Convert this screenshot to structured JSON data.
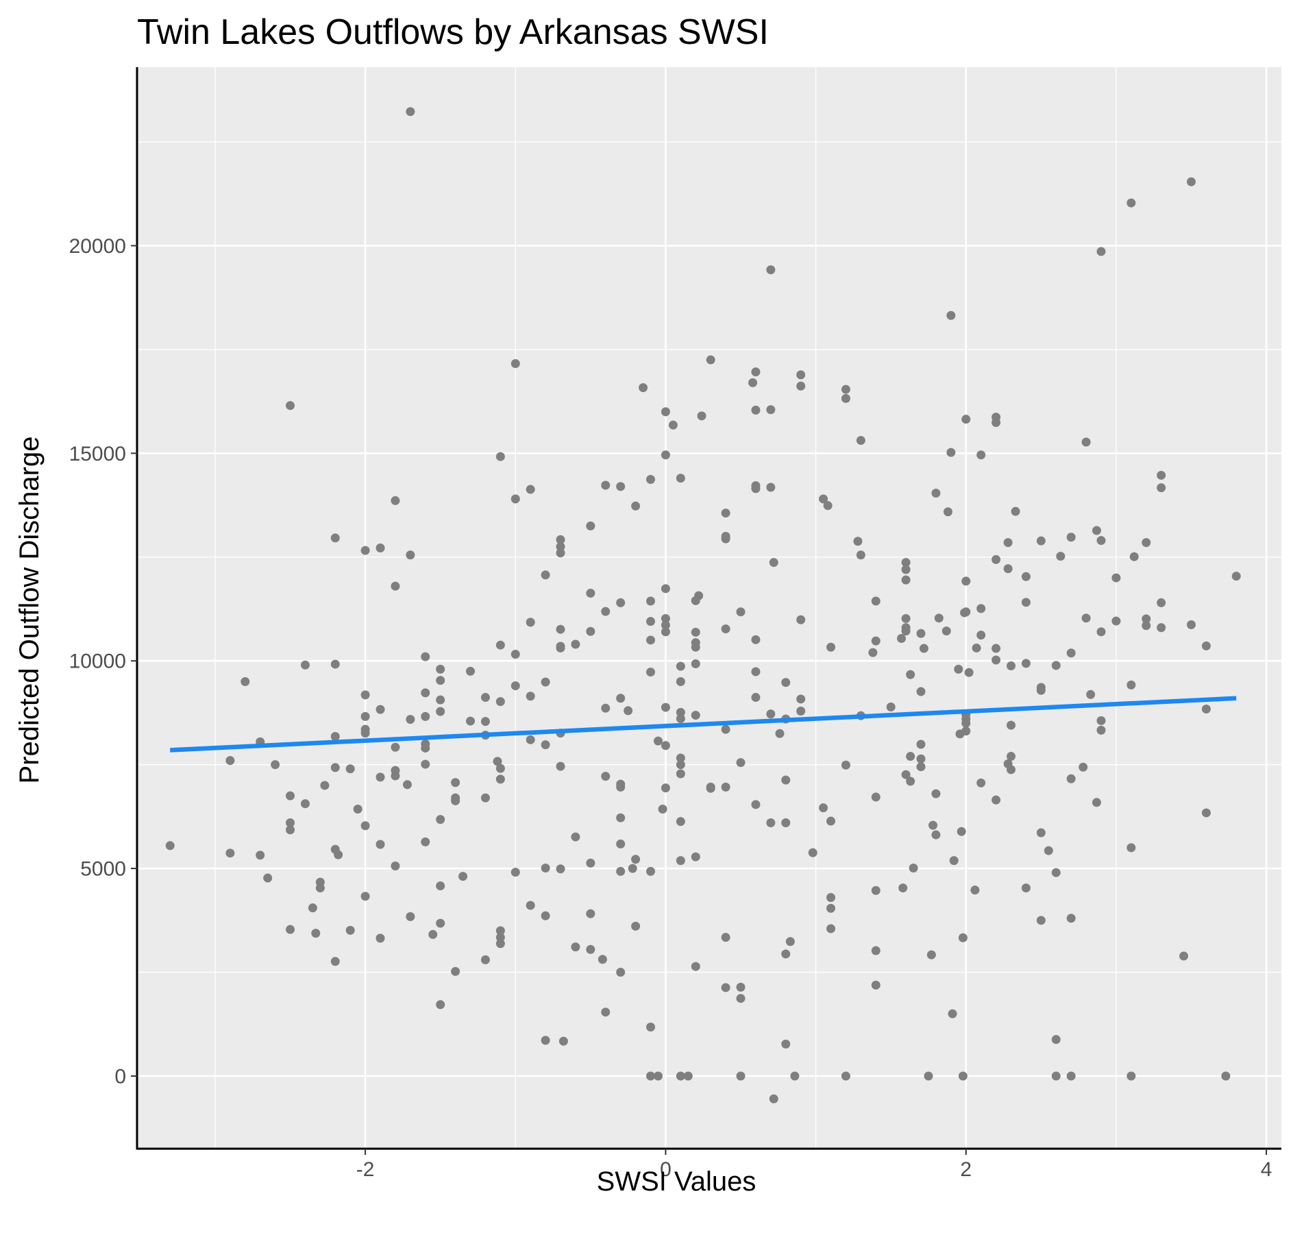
{
  "chart_data": {
    "type": "scatter",
    "title": "Twin Lakes Outflows by Arkansas SWSI",
    "xlabel": "SWSI Values",
    "ylabel": "Predicted Outflow Discharge",
    "xlim": [
      -3.52,
      4.1
    ],
    "ylim": [
      -1750,
      24300
    ],
    "x_ticks": [
      -2,
      0,
      2,
      4
    ],
    "x_tick_labels": [
      "-2",
      "0",
      "2",
      "4"
    ],
    "y_ticks": [
      0,
      5000,
      10000,
      15000,
      20000
    ],
    "y_tick_labels": [
      "0",
      "5000",
      "10000",
      "15000",
      "20000"
    ],
    "x_minor_grid": [
      -3,
      -1,
      1,
      3
    ],
    "y_minor_grid": [
      2500,
      7500,
      12500,
      17500,
      22500
    ],
    "grid": true,
    "legend": "none",
    "colors": {
      "panel": "#ebebeb",
      "grid": "#ffffff",
      "points": "#7f7f7f",
      "trend": "#1e88f0",
      "axis": "#000000"
    },
    "trend_line": {
      "x": [
        -3.3,
        3.8
      ],
      "y": [
        7850,
        9100
      ]
    },
    "points": [
      [
        -3.3,
        5550
      ],
      [
        -2.9,
        5370
      ],
      [
        -2.9,
        7600
      ],
      [
        -2.8,
        9500
      ],
      [
        -2.7,
        8050
      ],
      [
        -2.7,
        5320
      ],
      [
        -2.65,
        4770
      ],
      [
        -2.6,
        7500
      ],
      [
        -2.5,
        16150
      ],
      [
        -2.5,
        6750
      ],
      [
        -2.5,
        6100
      ],
      [
        -2.5,
        5930
      ],
      [
        -2.5,
        3530
      ],
      [
        -2.4,
        9900
      ],
      [
        -2.4,
        6560
      ],
      [
        -2.35,
        4050
      ],
      [
        -2.33,
        3440
      ],
      [
        -2.3,
        4530
      ],
      [
        -2.3,
        4670
      ],
      [
        -2.27,
        7000
      ],
      [
        -2.2,
        12960
      ],
      [
        -2.2,
        9920
      ],
      [
        -2.2,
        8180
      ],
      [
        -2.2,
        7430
      ],
      [
        -2.2,
        5460
      ],
      [
        -2.18,
        5330
      ],
      [
        -2.2,
        2760
      ],
      [
        -2.1,
        7400
      ],
      [
        -2.1,
        3510
      ],
      [
        -2.05,
        6430
      ],
      [
        -2.0,
        12660
      ],
      [
        -2.0,
        9180
      ],
      [
        -2.0,
        8660
      ],
      [
        -2.0,
        8350
      ],
      [
        -2.0,
        8260
      ],
      [
        -2.0,
        6030
      ],
      [
        -2.0,
        4330
      ],
      [
        -1.9,
        12720
      ],
      [
        -1.9,
        8830
      ],
      [
        -1.9,
        7200
      ],
      [
        -1.9,
        5580
      ],
      [
        -1.9,
        3320
      ],
      [
        -1.8,
        13860
      ],
      [
        -1.8,
        11800
      ],
      [
        -1.8,
        7920
      ],
      [
        -1.8,
        7360
      ],
      [
        -1.8,
        7230
      ],
      [
        -1.8,
        5060
      ],
      [
        -1.7,
        23230
      ],
      [
        -1.7,
        12550
      ],
      [
        -1.7,
        8590
      ],
      [
        -1.72,
        7020
      ],
      [
        -1.7,
        3840
      ],
      [
        -1.6,
        10100
      ],
      [
        -1.6,
        9230
      ],
      [
        -1.6,
        8660
      ],
      [
        -1.6,
        8000
      ],
      [
        -1.6,
        7900
      ],
      [
        -1.6,
        7510
      ],
      [
        -1.6,
        5640
      ],
      [
        -1.55,
        3410
      ],
      [
        -1.5,
        9800
      ],
      [
        -1.5,
        9530
      ],
      [
        -1.5,
        9060
      ],
      [
        -1.5,
        8780
      ],
      [
        -1.5,
        6180
      ],
      [
        -1.5,
        4580
      ],
      [
        -1.5,
        3680
      ],
      [
        -1.5,
        1720
      ],
      [
        -1.4,
        7070
      ],
      [
        -1.4,
        6700
      ],
      [
        -1.4,
        6630
      ],
      [
        -1.4,
        2520
      ],
      [
        -1.35,
        4810
      ],
      [
        -1.3,
        9750
      ],
      [
        -1.3,
        8550
      ],
      [
        -1.2,
        9120
      ],
      [
        -1.2,
        8540
      ],
      [
        -1.2,
        8210
      ],
      [
        -1.2,
        6700
      ],
      [
        -1.2,
        2800
      ],
      [
        -1.1,
        14920
      ],
      [
        -1.1,
        10380
      ],
      [
        -1.1,
        9020
      ],
      [
        -1.12,
        7580
      ],
      [
        -1.1,
        7410
      ],
      [
        -1.1,
        7150
      ],
      [
        -1.1,
        3500
      ],
      [
        -1.1,
        3340
      ],
      [
        -1.1,
        3190
      ],
      [
        -1.0,
        17160
      ],
      [
        -1.0,
        13900
      ],
      [
        -1.0,
        10160
      ],
      [
        -1.0,
        9400
      ],
      [
        -1.0,
        4910
      ],
      [
        -0.9,
        14130
      ],
      [
        -0.9,
        10930
      ],
      [
        -0.9,
        9150
      ],
      [
        -0.9,
        8100
      ],
      [
        -0.9,
        4110
      ],
      [
        -0.8,
        12070
      ],
      [
        -0.8,
        9490
      ],
      [
        -0.8,
        7980
      ],
      [
        -0.8,
        5010
      ],
      [
        -0.8,
        3860
      ],
      [
        -0.8,
        860
      ],
      [
        -0.7,
        12920
      ],
      [
        -0.7,
        12750
      ],
      [
        -0.7,
        12600
      ],
      [
        -0.7,
        10760
      ],
      [
        -0.7,
        10350
      ],
      [
        -0.7,
        10310
      ],
      [
        -0.7,
        8260
      ],
      [
        -0.7,
        7460
      ],
      [
        -0.7,
        4990
      ],
      [
        -0.68,
        840
      ],
      [
        -0.6,
        10400
      ],
      [
        -0.6,
        5760
      ],
      [
        -0.6,
        3110
      ],
      [
        -0.5,
        13250
      ],
      [
        -0.5,
        11630
      ],
      [
        -0.5,
        10710
      ],
      [
        -0.5,
        5130
      ],
      [
        -0.5,
        3910
      ],
      [
        -0.5,
        3050
      ],
      [
        -0.4,
        14230
      ],
      [
        -0.4,
        11190
      ],
      [
        -0.4,
        8860
      ],
      [
        -0.4,
        7220
      ],
      [
        -0.42,
        2810
      ],
      [
        -0.4,
        1540
      ],
      [
        -0.3,
        14200
      ],
      [
        -0.3,
        11400
      ],
      [
        -0.3,
        9100
      ],
      [
        -0.3,
        7030
      ],
      [
        -0.3,
        6960
      ],
      [
        -0.3,
        6220
      ],
      [
        -0.3,
        5590
      ],
      [
        -0.3,
        4930
      ],
      [
        -0.3,
        2500
      ],
      [
        -0.25,
        8800
      ],
      [
        -0.2,
        13730
      ],
      [
        -0.2,
        5220
      ],
      [
        -0.22,
        5000
      ],
      [
        -0.2,
        3610
      ],
      [
        -0.15,
        16580
      ],
      [
        -0.1,
        14370
      ],
      [
        -0.1,
        11440
      ],
      [
        -0.1,
        10950
      ],
      [
        -0.1,
        10500
      ],
      [
        -0.1,
        9730
      ],
      [
        -0.1,
        4930
      ],
      [
        -0.1,
        1180
      ],
      [
        -0.05,
        0
      ],
      [
        -0.1,
        0
      ],
      [
        -0.05,
        8070
      ],
      [
        0.0,
        16000
      ],
      [
        0.0,
        14960
      ],
      [
        0.0,
        11740
      ],
      [
        0.0,
        11020
      ],
      [
        0.0,
        10860
      ],
      [
        0.0,
        10700
      ],
      [
        0.0,
        8880
      ],
      [
        0.0,
        7960
      ],
      [
        -0.02,
        6430
      ],
      [
        0.0,
        6940
      ],
      [
        0.05,
        15680
      ],
      [
        0.1,
        14400
      ],
      [
        0.1,
        9870
      ],
      [
        0.1,
        9500
      ],
      [
        0.1,
        8760
      ],
      [
        0.1,
        8610
      ],
      [
        0.1,
        7660
      ],
      [
        0.1,
        7500
      ],
      [
        0.1,
        7280
      ],
      [
        0.1,
        6130
      ],
      [
        0.1,
        5190
      ],
      [
        0.1,
        0
      ],
      [
        0.15,
        0
      ],
      [
        0.2,
        11450
      ],
      [
        0.2,
        10690
      ],
      [
        0.2,
        10440
      ],
      [
        0.2,
        10330
      ],
      [
        0.2,
        9930
      ],
      [
        0.2,
        8690
      ],
      [
        0.2,
        5280
      ],
      [
        0.2,
        2640
      ],
      [
        0.24,
        15900
      ],
      [
        0.22,
        11570
      ],
      [
        0.3,
        17250
      ],
      [
        0.3,
        6930
      ],
      [
        0.3,
        6960
      ],
      [
        0.4,
        13560
      ],
      [
        0.4,
        13000
      ],
      [
        0.4,
        12940
      ],
      [
        0.4,
        10770
      ],
      [
        0.4,
        8350
      ],
      [
        0.4,
        6960
      ],
      [
        0.4,
        3340
      ],
      [
        0.4,
        2130
      ],
      [
        0.5,
        11180
      ],
      [
        0.5,
        7550
      ],
      [
        0.5,
        2140
      ],
      [
        0.5,
        1870
      ],
      [
        0.5,
        0
      ],
      [
        0.58,
        16700
      ],
      [
        0.6,
        16960
      ],
      [
        0.6,
        16040
      ],
      [
        0.6,
        14220
      ],
      [
        0.6,
        14150
      ],
      [
        0.6,
        10510
      ],
      [
        0.6,
        9740
      ],
      [
        0.6,
        9120
      ],
      [
        0.6,
        6540
      ],
      [
        0.7,
        19420
      ],
      [
        0.7,
        16050
      ],
      [
        0.7,
        14180
      ],
      [
        0.7,
        8720
      ],
      [
        0.7,
        6100
      ],
      [
        0.72,
        12370
      ],
      [
        0.72,
        -550
      ],
      [
        0.76,
        8250
      ],
      [
        0.8,
        9480
      ],
      [
        0.8,
        8600
      ],
      [
        0.8,
        7130
      ],
      [
        0.8,
        6100
      ],
      [
        0.8,
        2940
      ],
      [
        0.8,
        770
      ],
      [
        0.83,
        3240
      ],
      [
        0.86,
        0
      ],
      [
        0.9,
        16890
      ],
      [
        0.9,
        16620
      ],
      [
        0.9,
        10990
      ],
      [
        0.9,
        9080
      ],
      [
        0.9,
        8790
      ],
      [
        0.98,
        5380
      ],
      [
        1.05,
        13900
      ],
      [
        1.08,
        13740
      ],
      [
        1.1,
        10330
      ],
      [
        1.05,
        6460
      ],
      [
        1.1,
        6140
      ],
      [
        1.1,
        4300
      ],
      [
        1.1,
        4040
      ],
      [
        1.1,
        3550
      ],
      [
        1.2,
        16540
      ],
      [
        1.2,
        16320
      ],
      [
        1.2,
        7490
      ],
      [
        1.2,
        0
      ],
      [
        1.3,
        15310
      ],
      [
        1.28,
        12880
      ],
      [
        1.3,
        12550
      ],
      [
        1.3,
        8680
      ],
      [
        1.38,
        10200
      ],
      [
        1.4,
        11440
      ],
      [
        1.4,
        10480
      ],
      [
        1.4,
        6720
      ],
      [
        1.4,
        4470
      ],
      [
        1.4,
        3020
      ],
      [
        1.4,
        2190
      ],
      [
        1.5,
        8890
      ],
      [
        1.57,
        10540
      ],
      [
        1.58,
        4530
      ],
      [
        1.6,
        12370
      ],
      [
        1.6,
        12200
      ],
      [
        1.6,
        11950
      ],
      [
        1.6,
        11020
      ],
      [
        1.6,
        10800
      ],
      [
        1.6,
        10720
      ],
      [
        1.6,
        7260
      ],
      [
        1.63,
        9670
      ],
      [
        1.63,
        7700
      ],
      [
        1.63,
        7100
      ],
      [
        1.65,
        5010
      ],
      [
        1.7,
        10660
      ],
      [
        1.7,
        9260
      ],
      [
        1.7,
        7990
      ],
      [
        1.7,
        7640
      ],
      [
        1.7,
        7450
      ],
      [
        1.72,
        10300
      ],
      [
        1.75,
        0
      ],
      [
        1.78,
        6040
      ],
      [
        1.77,
        2920
      ],
      [
        1.8,
        14040
      ],
      [
        1.8,
        6800
      ],
      [
        1.8,
        5810
      ],
      [
        1.82,
        11030
      ],
      [
        1.87,
        10720
      ],
      [
        1.88,
        13590
      ],
      [
        1.9,
        18320
      ],
      [
        1.9,
        15020
      ],
      [
        1.92,
        5190
      ],
      [
        1.91,
        1500
      ],
      [
        1.95,
        9800
      ],
      [
        1.96,
        8240
      ],
      [
        1.97,
        5890
      ],
      [
        1.98,
        0
      ],
      [
        1.98,
        3330
      ],
      [
        2.0,
        15820
      ],
      [
        2.0,
        11920
      ],
      [
        2.0,
        11180
      ],
      [
        1.99,
        11160
      ],
      [
        2.0,
        8710
      ],
      [
        2.0,
        8600
      ],
      [
        2.0,
        8500
      ],
      [
        2.0,
        8310
      ],
      [
        2.02,
        9720
      ],
      [
        2.06,
        4480
      ],
      [
        2.07,
        10310
      ],
      [
        2.1,
        14960
      ],
      [
        2.1,
        11260
      ],
      [
        2.1,
        10620
      ],
      [
        2.1,
        7060
      ],
      [
        2.2,
        15870
      ],
      [
        2.2,
        15740
      ],
      [
        2.2,
        12440
      ],
      [
        2.2,
        10300
      ],
      [
        2.2,
        10020
      ],
      [
        2.2,
        6650
      ],
      [
        2.28,
        12850
      ],
      [
        2.28,
        12220
      ],
      [
        2.3,
        9880
      ],
      [
        2.3,
        8450
      ],
      [
        2.3,
        7700
      ],
      [
        2.28,
        7520
      ],
      [
        2.3,
        7380
      ],
      [
        2.33,
        13600
      ],
      [
        2.4,
        12030
      ],
      [
        2.4,
        11410
      ],
      [
        2.4,
        9940
      ],
      [
        2.4,
        4530
      ],
      [
        2.5,
        12890
      ],
      [
        2.5,
        9360
      ],
      [
        2.5,
        9290
      ],
      [
        2.5,
        5860
      ],
      [
        2.5,
        3750
      ],
      [
        2.55,
        5430
      ],
      [
        2.6,
        9890
      ],
      [
        2.6,
        4900
      ],
      [
        2.6,
        880
      ],
      [
        2.6,
        0
      ],
      [
        2.63,
        12520
      ],
      [
        2.7,
        12980
      ],
      [
        2.7,
        10190
      ],
      [
        2.7,
        7160
      ],
      [
        2.7,
        3800
      ],
      [
        2.7,
        0
      ],
      [
        2.78,
        7440
      ],
      [
        2.8,
        15270
      ],
      [
        2.8,
        11030
      ],
      [
        2.83,
        9190
      ],
      [
        2.87,
        13140
      ],
      [
        2.87,
        6590
      ],
      [
        2.9,
        19860
      ],
      [
        2.9,
        12900
      ],
      [
        2.9,
        10700
      ],
      [
        2.9,
        8560
      ],
      [
        2.9,
        8330
      ],
      [
        3.0,
        12000
      ],
      [
        3.0,
        10960
      ],
      [
        3.1,
        21030
      ],
      [
        3.12,
        12510
      ],
      [
        3.1,
        9420
      ],
      [
        3.1,
        5500
      ],
      [
        3.1,
        0
      ],
      [
        3.2,
        12850
      ],
      [
        3.2,
        11010
      ],
      [
        3.2,
        10850
      ],
      [
        3.3,
        14470
      ],
      [
        3.3,
        14170
      ],
      [
        3.3,
        11400
      ],
      [
        3.3,
        10800
      ],
      [
        3.45,
        2890
      ],
      [
        3.5,
        21540
      ],
      [
        3.5,
        10870
      ],
      [
        3.6,
        10360
      ],
      [
        3.6,
        8840
      ],
      [
        3.6,
        6340
      ],
      [
        3.73,
        0
      ],
      [
        3.8,
        12040
      ]
    ]
  }
}
